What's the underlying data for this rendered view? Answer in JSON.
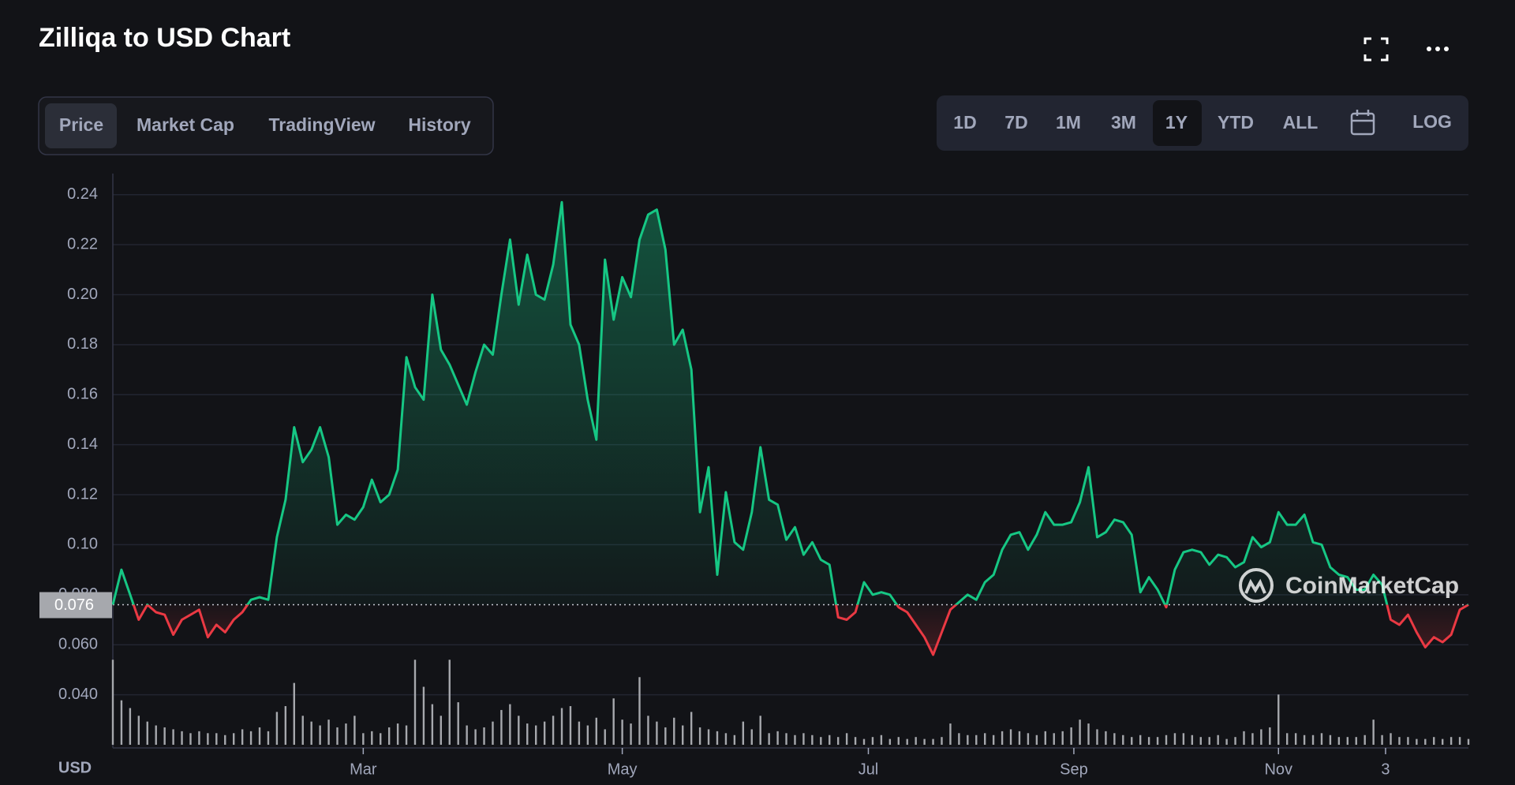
{
  "header": {
    "title": "Zilliqa to USD Chart"
  },
  "tabs": [
    "Price",
    "Market Cap",
    "TradingView",
    "History"
  ],
  "active_tab": 0,
  "ranges": [
    "1D",
    "7D",
    "1M",
    "3M",
    "1Y",
    "YTD",
    "ALL"
  ],
  "active_range": 4,
  "log_button": "LOG",
  "watermark": "CoinMarketCap",
  "chart_data": {
    "type": "line",
    "y_unit_label": "USD",
    "baseline": 0.076,
    "up_color": "#16c784",
    "down_color": "#ea3943",
    "grid": true,
    "ylim": [
      0.02,
      0.25
    ],
    "yticks": [
      {
        "value": 0.04,
        "label": "0.040"
      },
      {
        "value": 0.06,
        "label": "0.060"
      },
      {
        "value": 0.08,
        "label": "0.080"
      },
      {
        "value": 0.1,
        "label": "0.10"
      },
      0.12,
      0.14,
      0.16,
      0.18,
      {
        "value": 0.2,
        "label": "0.20"
      },
      0.22,
      0.24
    ],
    "xlim": [
      0,
      157
    ],
    "xticks": [
      {
        "value": 29,
        "label": "Mar"
      },
      {
        "value": 59,
        "label": "May"
      },
      {
        "value": 87.5,
        "label": "Jul"
      },
      {
        "value": 111.3,
        "label": "Sep"
      },
      {
        "value": 135,
        "label": "Nov"
      },
      {
        "value": 147.4,
        "label": "3"
      }
    ],
    "values": [
      0.076,
      0.09,
      0.08,
      0.07,
      0.076,
      0.073,
      0.072,
      0.064,
      0.07,
      0.072,
      0.074,
      0.063,
      0.068,
      0.065,
      0.07,
      0.073,
      0.078,
      0.079,
      0.078,
      0.103,
      0.118,
      0.147,
      0.133,
      0.138,
      0.147,
      0.135,
      0.108,
      0.112,
      0.11,
      0.115,
      0.126,
      0.117,
      0.12,
      0.13,
      0.175,
      0.163,
      0.158,
      0.2,
      0.178,
      0.172,
      0.164,
      0.156,
      0.169,
      0.18,
      0.176,
      0.2,
      0.222,
      0.196,
      0.216,
      0.2,
      0.198,
      0.212,
      0.237,
      0.188,
      0.18,
      0.158,
      0.142,
      0.214,
      0.19,
      0.207,
      0.199,
      0.222,
      0.232,
      0.234,
      0.218,
      0.18,
      0.186,
      0.17,
      0.113,
      0.131,
      0.088,
      0.121,
      0.101,
      0.098,
      0.113,
      0.139,
      0.118,
      0.116,
      0.102,
      0.107,
      0.096,
      0.101,
      0.094,
      0.092,
      0.071,
      0.07,
      0.073,
      0.085,
      0.08,
      0.081,
      0.08,
      0.075,
      0.073,
      0.068,
      0.063,
      0.056,
      0.065,
      0.074,
      0.077,
      0.08,
      0.078,
      0.085,
      0.088,
      0.098,
      0.104,
      0.105,
      0.098,
      0.104,
      0.113,
      0.108,
      0.108,
      0.109,
      0.117,
      0.131,
      0.103,
      0.105,
      0.11,
      0.109,
      0.104,
      0.081,
      0.087,
      0.082,
      0.075,
      0.09,
      0.097,
      0.098,
      0.097,
      0.092,
      0.096,
      0.095,
      0.091,
      0.093,
      0.103,
      0.099,
      0.101,
      0.113,
      0.108,
      0.108,
      0.112,
      0.101,
      0.1,
      0.091,
      0.088,
      0.087,
      0.082,
      0.082,
      0.088,
      0.084,
      0.07,
      0.068,
      0.072,
      0.065,
      0.059,
      0.063,
      0.061,
      0.064,
      0.074,
      0.076
    ],
    "volume_color": "#a6a8ad",
    "volume": [
      88,
      46,
      38,
      30,
      24,
      20,
      18,
      16,
      14,
      12,
      14,
      12,
      12,
      10,
      12,
      16,
      14,
      18,
      14,
      34,
      40,
      64,
      30,
      24,
      20,
      26,
      18,
      22,
      30,
      12,
      14,
      12,
      18,
      22,
      20,
      88,
      60,
      42,
      30,
      88,
      44,
      20,
      16,
      18,
      24,
      36,
      42,
      30,
      22,
      20,
      24,
      30,
      38,
      40,
      24,
      20,
      28,
      16,
      48,
      26,
      22,
      70,
      30,
      24,
      18,
      28,
      20,
      34,
      18,
      16,
      14,
      12,
      10,
      24,
      16,
      30,
      12,
      14,
      12,
      10,
      12,
      10,
      8,
      10,
      8,
      12,
      8,
      6,
      8,
      10,
      6,
      8,
      6,
      8,
      6,
      6,
      8,
      22,
      12,
      10,
      10,
      12,
      10,
      14,
      16,
      14,
      12,
      10,
      14,
      12,
      14,
      18,
      26,
      22,
      16,
      14,
      12,
      10,
      8,
      10,
      8,
      8,
      10,
      12,
      12,
      10,
      8,
      8,
      10,
      6,
      8,
      14,
      12,
      16,
      18,
      52,
      12,
      12,
      10,
      10,
      12,
      10,
      8,
      8,
      8,
      10,
      26,
      10,
      12,
      8,
      8,
      6,
      6,
      8,
      6,
      8,
      8,
      6
    ]
  }
}
